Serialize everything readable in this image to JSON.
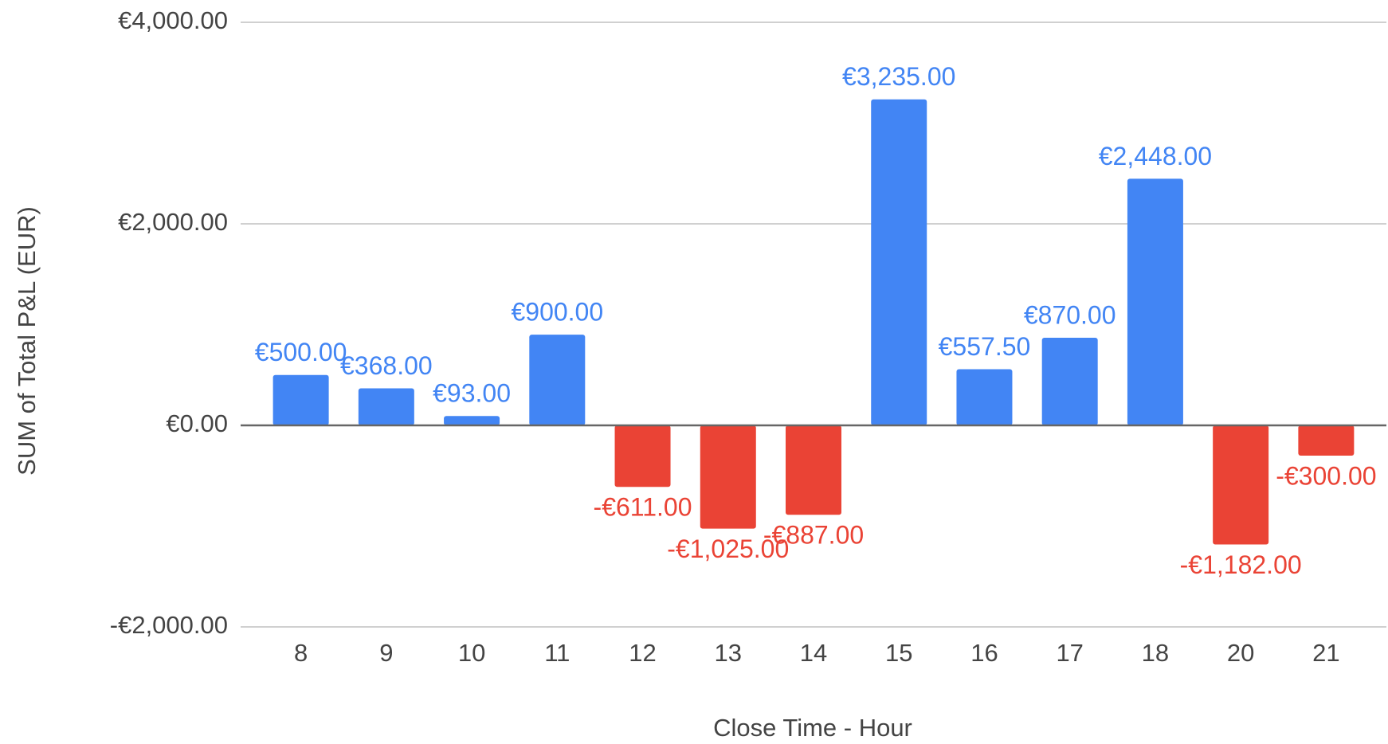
{
  "chart_data": {
    "type": "bar",
    "x_label": "Close Time - Hour",
    "y_label": "SUM of Total P&L (EUR)",
    "categories": [
      "8",
      "9",
      "10",
      "11",
      "12",
      "13",
      "14",
      "15",
      "16",
      "17",
      "18",
      "20",
      "21"
    ],
    "values": [
      500,
      368,
      93,
      900,
      -611,
      -1025,
      -887,
      3235,
      557.5,
      870,
      2448,
      -1182,
      -300
    ],
    "value_labels": [
      "€500.00",
      "€368.00",
      "€93.00",
      "€900.00",
      "-€611.00",
      "-€1,025.00",
      "-€887.00",
      "€3,235.00",
      "€557.50",
      "€870.00",
      "€2,448.00",
      "-€1,182.00",
      "-€300.00"
    ],
    "positive_color": "#4285f4",
    "negative_color": "#ea4335",
    "ylim": [
      -2000,
      4000
    ],
    "yticks": [
      {
        "value": -2000,
        "label": "-€2,000.00"
      },
      {
        "value": 0,
        "label": "€0.00"
      },
      {
        "value": 2000,
        "label": "€2,000.00"
      },
      {
        "value": 4000,
        "label": "€4,000.00"
      }
    ],
    "grid": true
  }
}
